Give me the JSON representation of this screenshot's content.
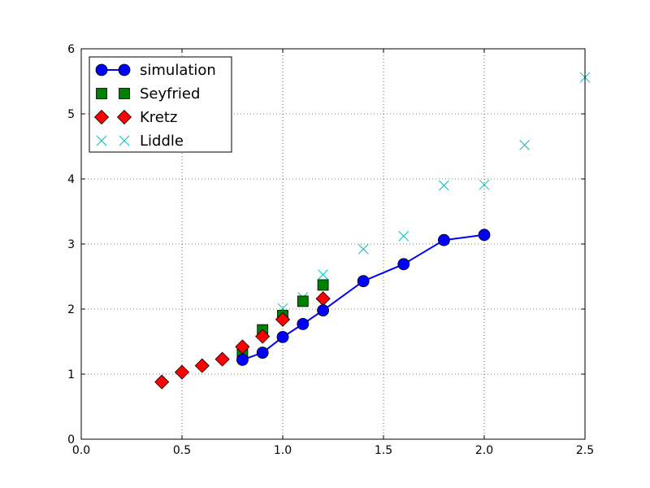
{
  "chart_data": {
    "type": "scatter",
    "title": "",
    "xlabel": "",
    "ylabel": "",
    "xlim": [
      0,
      2.5
    ],
    "ylim": [
      0,
      6
    ],
    "x_ticks": [
      "0.0",
      "0.5",
      "1.0",
      "1.5",
      "2.0",
      "2.5"
    ],
    "y_ticks": [
      "0",
      "1",
      "2",
      "3",
      "4",
      "5",
      "6"
    ],
    "grid": true,
    "legend_position": "upper-left",
    "series": [
      {
        "name": "simulation",
        "style": "line-with-circle-markers",
        "color": "#0000ff",
        "x": [
          0.8,
          0.9,
          1.0,
          1.1,
          1.2,
          1.4,
          1.6,
          1.8,
          2.0
        ],
        "y": [
          1.22,
          1.33,
          1.57,
          1.77,
          1.98,
          2.43,
          2.69,
          3.06,
          3.14
        ]
      },
      {
        "name": "Seyfried",
        "style": "square-markers",
        "color": "#008000",
        "x": [
          0.8,
          0.9,
          1.0,
          1.1,
          1.2
        ],
        "y": [
          1.3,
          1.68,
          1.9,
          2.12,
          2.37
        ]
      },
      {
        "name": "Kretz",
        "style": "diamond-markers",
        "color": "#ff0000",
        "x": [
          0.4,
          0.5,
          0.6,
          0.7,
          0.8,
          0.9,
          1.0,
          1.2
        ],
        "y": [
          0.88,
          1.03,
          1.13,
          1.23,
          1.42,
          1.58,
          1.84,
          2.16
        ]
      },
      {
        "name": "Liddle",
        "style": "x-markers",
        "color": "#00bfbf",
        "x": [
          0.8,
          0.9,
          1.0,
          1.1,
          1.2,
          1.4,
          1.6,
          1.8,
          2.0,
          2.2,
          2.5
        ],
        "y": [
          1.27,
          1.65,
          2.01,
          2.18,
          2.53,
          2.92,
          3.12,
          3.9,
          3.91,
          4.52,
          5.56
        ]
      }
    ]
  }
}
